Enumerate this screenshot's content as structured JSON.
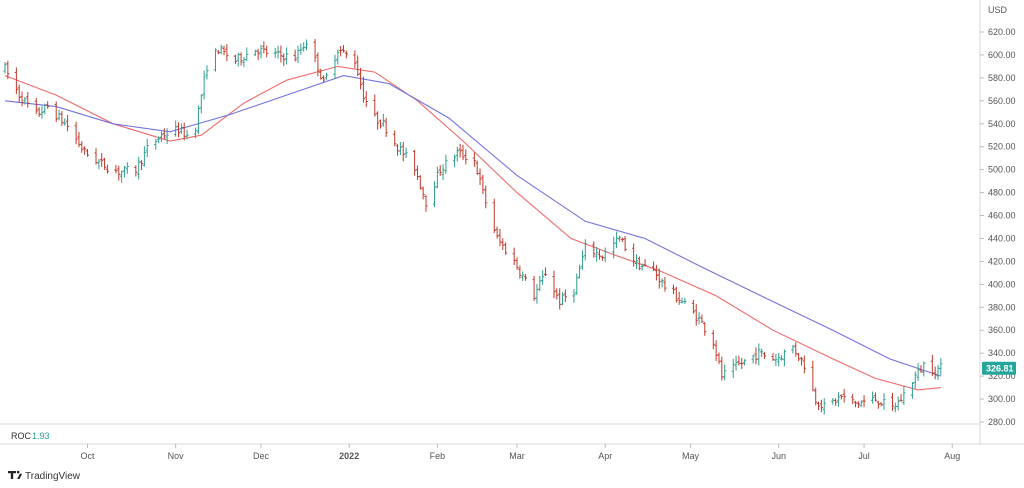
{
  "chart_data": {
    "type": "ohlc",
    "currency_label": "USD",
    "y_range": [
      270,
      640
    ],
    "y_ticks": [
      "620.00",
      "600.00",
      "580.00",
      "560.00",
      "540.00",
      "520.00",
      "500.00",
      "480.00",
      "460.00",
      "440.00",
      "420.00",
      "400.00",
      "380.00",
      "360.00",
      "340.00",
      "320.00",
      "300.00",
      "280.00"
    ],
    "x_labels": [
      {
        "label": "Oct",
        "date": "2021-10-01",
        "bold": false
      },
      {
        "label": "Nov",
        "date": "2021-11-01",
        "bold": false
      },
      {
        "label": "Dec",
        "date": "2021-12-01",
        "bold": false
      },
      {
        "label": "2022",
        "date": "2022-01-01",
        "bold": true
      },
      {
        "label": "Feb",
        "date": "2022-02-01",
        "bold": false
      },
      {
        "label": "Mar",
        "date": "2022-03-01",
        "bold": false
      },
      {
        "label": "Apr",
        "date": "2022-04-01",
        "bold": false
      },
      {
        "label": "May",
        "date": "2022-05-01",
        "bold": false
      },
      {
        "label": "Jun",
        "date": "2022-06-01",
        "bold": false
      },
      {
        "label": "Jul",
        "date": "2022-07-01",
        "bold": false
      },
      {
        "label": "Aug",
        "date": "2022-08-01",
        "bold": false
      }
    ],
    "x_range": [
      "2021-09-02",
      "2022-08-09"
    ],
    "last_price": "326.81",
    "price_path": [
      [
        "2021-09-02",
        588
      ],
      [
        "2021-09-07",
        565
      ],
      [
        "2021-09-13",
        548
      ],
      [
        "2021-09-17",
        555
      ],
      [
        "2021-09-24",
        538
      ],
      [
        "2021-09-30",
        515
      ],
      [
        "2021-10-06",
        505
      ],
      [
        "2021-10-12",
        498
      ],
      [
        "2021-10-18",
        500
      ],
      [
        "2021-10-22",
        518
      ],
      [
        "2021-10-27",
        530
      ],
      [
        "2021-11-02",
        535
      ],
      [
        "2021-11-05",
        530
      ],
      [
        "2021-11-08",
        538
      ],
      [
        "2021-11-10",
        565
      ],
      [
        "2021-11-12",
        590
      ],
      [
        "2021-11-16",
        605
      ],
      [
        "2021-11-22",
        595
      ],
      [
        "2021-11-29",
        605
      ],
      [
        "2021-12-06",
        600
      ],
      [
        "2021-12-13",
        598
      ],
      [
        "2021-12-17",
        612
      ],
      [
        "2021-12-21",
        590
      ],
      [
        "2021-12-23",
        575
      ],
      [
        "2021-12-28",
        605
      ],
      [
        "2022-01-03",
        595
      ],
      [
        "2022-01-06",
        565
      ],
      [
        "2022-01-10",
        545
      ],
      [
        "2022-01-13",
        540
      ],
      [
        "2022-01-18",
        520
      ],
      [
        "2022-01-24",
        502
      ],
      [
        "2022-01-28",
        472
      ],
      [
        "2022-02-02",
        500
      ],
      [
        "2022-02-08",
        515
      ],
      [
        "2022-02-14",
        508
      ],
      [
        "2022-02-17",
        480
      ],
      [
        "2022-02-22",
        440
      ],
      [
        "2022-02-28",
        420
      ],
      [
        "2022-03-07",
        390
      ],
      [
        "2022-03-11",
        410
      ],
      [
        "2022-03-16",
        385
      ],
      [
        "2022-03-21",
        395
      ],
      [
        "2022-03-25",
        432
      ],
      [
        "2022-03-31",
        425
      ],
      [
        "2022-04-06",
        440
      ],
      [
        "2022-04-12",
        418
      ],
      [
        "2022-04-18",
        412
      ],
      [
        "2022-04-22",
        398
      ],
      [
        "2022-04-28",
        385
      ],
      [
        "2022-05-04",
        370
      ],
      [
        "2022-05-09",
        350
      ],
      [
        "2022-05-12",
        320
      ],
      [
        "2022-05-18",
        330
      ],
      [
        "2022-05-25",
        340
      ],
      [
        "2022-05-31",
        335
      ],
      [
        "2022-06-06",
        345
      ],
      [
        "2022-06-10",
        330
      ],
      [
        "2022-06-14",
        300
      ],
      [
        "2022-06-17",
        293
      ],
      [
        "2022-06-23",
        302
      ],
      [
        "2022-06-28",
        296
      ],
      [
        "2022-07-05",
        300
      ],
      [
        "2022-07-11",
        292
      ],
      [
        "2022-07-14",
        300
      ],
      [
        "2022-07-19",
        320
      ],
      [
        "2022-07-22",
        330
      ],
      [
        "2022-07-26",
        325
      ],
      [
        "2022-07-28",
        327
      ]
    ],
    "series": [
      {
        "color": "#ef6a6a",
        "points": [
          [
            "2021-09-02",
            582
          ],
          [
            "2021-09-20",
            565
          ],
          [
            "2021-10-10",
            540
          ],
          [
            "2021-10-30",
            525
          ],
          [
            "2021-11-10",
            530
          ],
          [
            "2021-11-25",
            558
          ],
          [
            "2021-12-10",
            578
          ],
          [
            "2021-12-28",
            590
          ],
          [
            "2022-01-10",
            585
          ],
          [
            "2022-01-25",
            560
          ],
          [
            "2022-02-10",
            525
          ],
          [
            "2022-03-01",
            480
          ],
          [
            "2022-03-20",
            440
          ],
          [
            "2022-04-05",
            425
          ],
          [
            "2022-04-20",
            412
          ],
          [
            "2022-05-10",
            390
          ],
          [
            "2022-05-30",
            360
          ],
          [
            "2022-06-20",
            335
          ],
          [
            "2022-07-05",
            318
          ],
          [
            "2022-07-20",
            308
          ],
          [
            "2022-07-28",
            310
          ]
        ]
      },
      {
        "color": "#7272e0",
        "points": [
          [
            "2021-09-02",
            560
          ],
          [
            "2021-09-20",
            555
          ],
          [
            "2021-10-10",
            540
          ],
          [
            "2021-10-30",
            533
          ],
          [
            "2021-11-20",
            548
          ],
          [
            "2021-12-10",
            565
          ],
          [
            "2021-12-30",
            582
          ],
          [
            "2022-01-15",
            575
          ],
          [
            "2022-02-05",
            545
          ],
          [
            "2022-03-01",
            495
          ],
          [
            "2022-03-25",
            455
          ],
          [
            "2022-04-15",
            440
          ],
          [
            "2022-05-05",
            415
          ],
          [
            "2022-05-30",
            385
          ],
          [
            "2022-06-20",
            360
          ],
          [
            "2022-07-10",
            335
          ],
          [
            "2022-07-28",
            320
          ]
        ]
      }
    ],
    "roc": {
      "name": "ROC",
      "value": "1.93"
    },
    "colors": {
      "up": "#26a69a",
      "down": "#ef5350",
      "bar_up": "#2e9e8f",
      "bar_down": "#c0392b",
      "tag_bg": "#26a69a"
    }
  },
  "brand": {
    "icon": "tradingview-logo-icon",
    "text": "TradingView"
  }
}
